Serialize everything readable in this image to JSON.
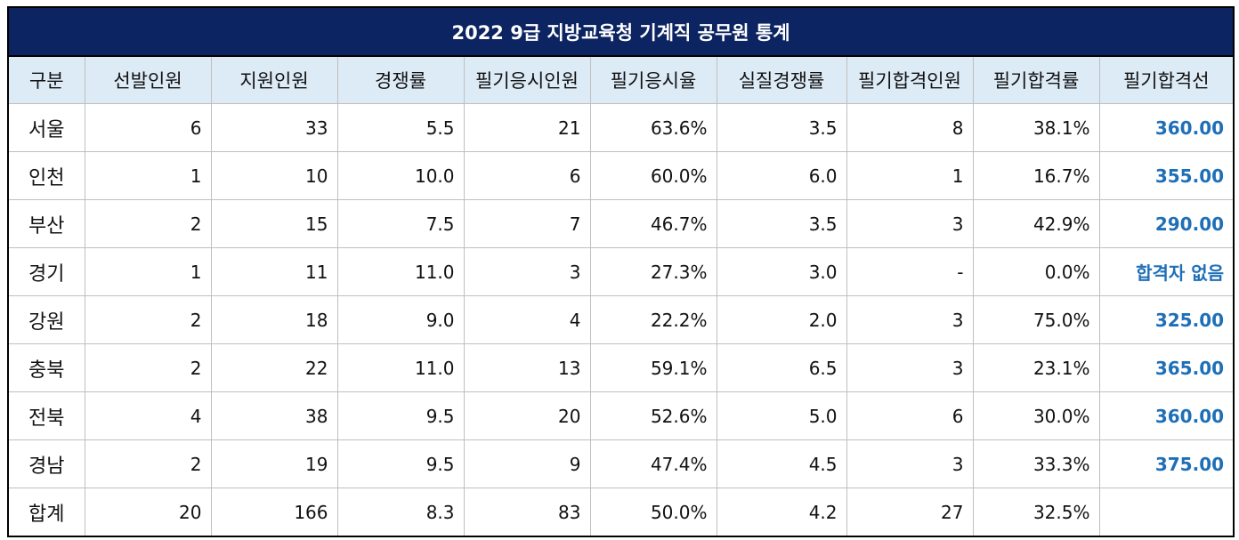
{
  "title": "2022 9급 지방교육청 기계직 공무원 통계",
  "headers": [
    "구분",
    "선발인원",
    "지원인원",
    "경쟁률",
    "필기응시인원",
    "필기응시율",
    "실질경쟁률",
    "필기합격인원",
    "필기합격률",
    "필기합격선"
  ],
  "rows": [
    {
      "region": "서울",
      "selected": "6",
      "applicants": "33",
      "competition": "5.5",
      "examinees": "21",
      "exam_rate": "63.6%",
      "real_competition": "3.5",
      "passed": "8",
      "pass_rate": "38.1%",
      "cutoff": "360.00"
    },
    {
      "region": "인천",
      "selected": "1",
      "applicants": "10",
      "competition": "10.0",
      "examinees": "6",
      "exam_rate": "60.0%",
      "real_competition": "6.0",
      "passed": "1",
      "pass_rate": "16.7%",
      "cutoff": "355.00"
    },
    {
      "region": "부산",
      "selected": "2",
      "applicants": "15",
      "competition": "7.5",
      "examinees": "7",
      "exam_rate": "46.7%",
      "real_competition": "3.5",
      "passed": "3",
      "pass_rate": "42.9%",
      "cutoff": "290.00"
    },
    {
      "region": "경기",
      "selected": "1",
      "applicants": "11",
      "competition": "11.0",
      "examinees": "3",
      "exam_rate": "27.3%",
      "real_competition": "3.0",
      "passed": "-",
      "pass_rate": "0.0%",
      "cutoff": "합격자 없음"
    },
    {
      "region": "강원",
      "selected": "2",
      "applicants": "18",
      "competition": "9.0",
      "examinees": "4",
      "exam_rate": "22.2%",
      "real_competition": "2.0",
      "passed": "3",
      "pass_rate": "75.0%",
      "cutoff": "325.00"
    },
    {
      "region": "충북",
      "selected": "2",
      "applicants": "22",
      "competition": "11.0",
      "examinees": "13",
      "exam_rate": "59.1%",
      "real_competition": "6.5",
      "passed": "3",
      "pass_rate": "23.1%",
      "cutoff": "365.00"
    },
    {
      "region": "전북",
      "selected": "4",
      "applicants": "38",
      "competition": "9.5",
      "examinees": "20",
      "exam_rate": "52.6%",
      "real_competition": "5.0",
      "passed": "6",
      "pass_rate": "30.0%",
      "cutoff": "360.00"
    },
    {
      "region": "경남",
      "selected": "2",
      "applicants": "19",
      "competition": "9.5",
      "examinees": "9",
      "exam_rate": "47.4%",
      "real_competition": "4.5",
      "passed": "3",
      "pass_rate": "33.3%",
      "cutoff": "375.00"
    },
    {
      "region": "합계",
      "selected": "20",
      "applicants": "166",
      "competition": "8.3",
      "examinees": "83",
      "exam_rate": "50.0%",
      "real_competition": "4.2",
      "passed": "27",
      "pass_rate": "32.5%",
      "cutoff": ""
    }
  ],
  "colors": {
    "title_bg": "#0c2461",
    "header_bg": "#ddebf7",
    "cutoff_text": "#1f6fb7"
  }
}
